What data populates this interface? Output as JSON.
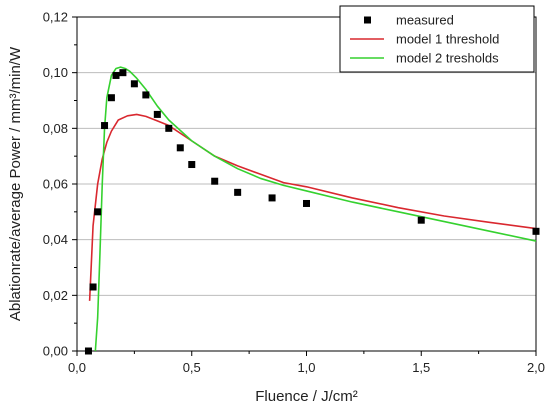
{
  "chart_data": {
    "type": "scatter",
    "xlabel": "Fluence / J/cm²",
    "ylabel": "Ablationrate/average Power / mm³/min/W",
    "xlim": [
      0.0,
      2.0
    ],
    "ylim": [
      0.0,
      0.12
    ],
    "x_ticks": [
      "0,0",
      "0,5",
      "1,0",
      "1,5",
      "2,0"
    ],
    "y_ticks": [
      "0,00",
      "0,02",
      "0,04",
      "0,06",
      "0,08",
      "0,10",
      "0,12"
    ],
    "x_tick_values": [
      0.0,
      0.5,
      1.0,
      1.5,
      2.0
    ],
    "y_tick_values": [
      0.0,
      0.02,
      0.04,
      0.06,
      0.08,
      0.1,
      0.12
    ],
    "x_minor_step": 0.25,
    "y_minor_step": 0.01,
    "grid": "horizontal",
    "legend_position": "top-right",
    "series": [
      {
        "name": "measured",
        "kind": "markers",
        "marker": "square",
        "color": "#000000",
        "x": [
          0.05,
          0.07,
          0.09,
          0.12,
          0.15,
          0.17,
          0.2,
          0.25,
          0.3,
          0.35,
          0.4,
          0.45,
          0.5,
          0.6,
          0.7,
          0.85,
          1.0,
          1.5,
          2.0
        ],
        "y": [
          0.0,
          0.023,
          0.05,
          0.081,
          0.091,
          0.099,
          0.1,
          0.096,
          0.092,
          0.085,
          0.08,
          0.073,
          0.067,
          0.061,
          0.057,
          0.055,
          0.053,
          0.047,
          0.043
        ]
      },
      {
        "name": "model 1 threshold",
        "kind": "line",
        "color": "#d9282f",
        "x": [
          0.055,
          0.07,
          0.09,
          0.11,
          0.13,
          0.15,
          0.18,
          0.22,
          0.26,
          0.3,
          0.35,
          0.4,
          0.5,
          0.6,
          0.7,
          0.8,
          0.9,
          1.0,
          1.2,
          1.4,
          1.6,
          1.8,
          2.0
        ],
        "y": [
          0.018,
          0.045,
          0.06,
          0.069,
          0.075,
          0.079,
          0.083,
          0.0845,
          0.085,
          0.0843,
          0.0827,
          0.081,
          0.0755,
          0.07,
          0.0665,
          0.0635,
          0.0605,
          0.059,
          0.055,
          0.0515,
          0.0485,
          0.0462,
          0.044
        ]
      },
      {
        "name": "model 2 tresholds",
        "kind": "line",
        "color": "#35d12f",
        "x": [
          0.08,
          0.09,
          0.1,
          0.11,
          0.12,
          0.13,
          0.15,
          0.17,
          0.19,
          0.21,
          0.23,
          0.26,
          0.3,
          0.35,
          0.4,
          0.5,
          0.6,
          0.7,
          0.8,
          0.9,
          1.0,
          1.2,
          1.4,
          1.6,
          1.8,
          2.0
        ],
        "y": [
          0.0,
          0.012,
          0.035,
          0.06,
          0.08,
          0.091,
          0.099,
          0.1015,
          0.102,
          0.1015,
          0.1005,
          0.098,
          0.094,
          0.088,
          0.083,
          0.0755,
          0.07,
          0.0655,
          0.062,
          0.0595,
          0.0575,
          0.0535,
          0.05,
          0.0465,
          0.043,
          0.0395
        ]
      }
    ]
  }
}
